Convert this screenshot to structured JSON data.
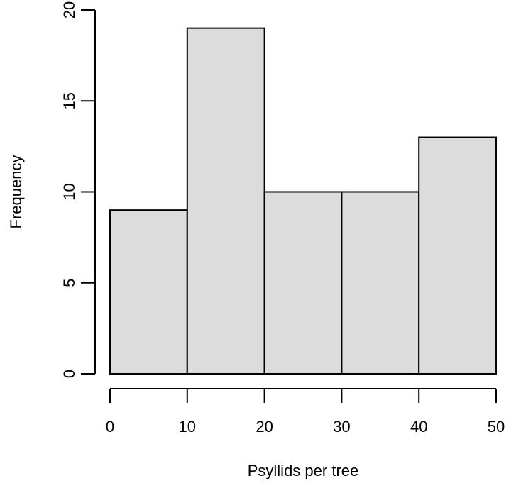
{
  "chart_data": {
    "type": "bar",
    "bins": [
      {
        "x0": 0,
        "x1": 10,
        "value": 9
      },
      {
        "x0": 10,
        "x1": 20,
        "value": 19
      },
      {
        "x0": 20,
        "x1": 30,
        "value": 10
      },
      {
        "x0": 30,
        "x1": 40,
        "value": 10
      },
      {
        "x0": 40,
        "x1": 50,
        "value": 13
      }
    ],
    "xlabel": "Psyllids per tree",
    "ylabel": "Frequency",
    "xlim": [
      0,
      50
    ],
    "ylim": [
      0,
      20
    ],
    "x_ticks": [
      0,
      10,
      20,
      30,
      40,
      50
    ],
    "y_ticks": [
      0,
      5,
      10,
      15,
      20
    ],
    "grid": false,
    "colors": {
      "bar_fill": "#dcdcdc",
      "bar_stroke": "#000000"
    }
  }
}
